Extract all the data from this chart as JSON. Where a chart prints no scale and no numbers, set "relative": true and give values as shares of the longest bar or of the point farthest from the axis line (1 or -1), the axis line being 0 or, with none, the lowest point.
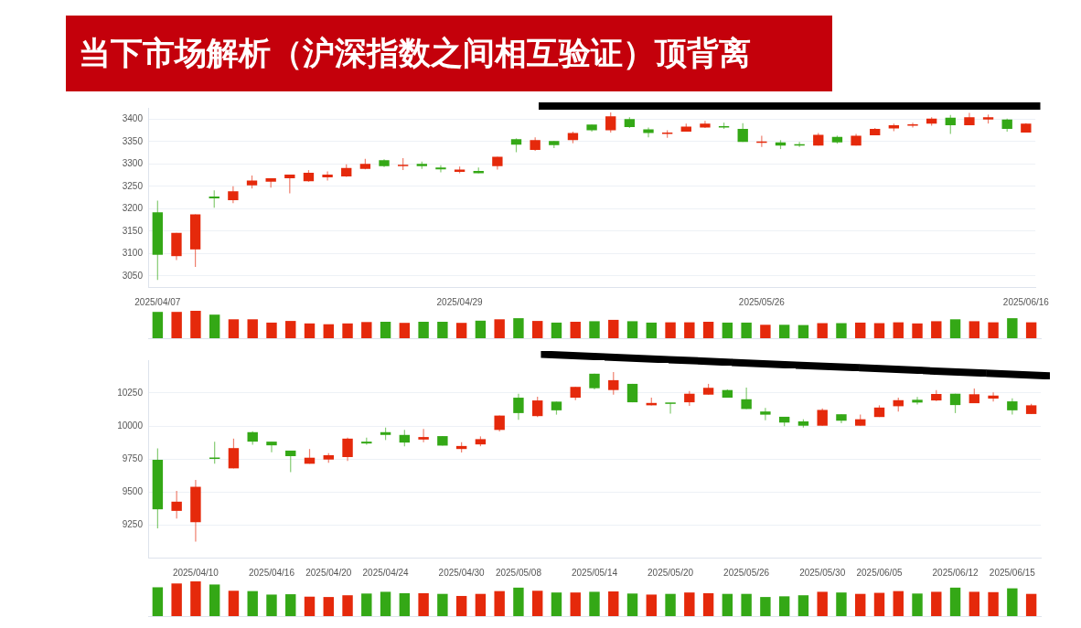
{
  "chart_data": [
    {
      "type": "candlestick",
      "title": "当下市场解析（沪深指数之间相互验证）顶背离",
      "grid": "y",
      "ylim": [
        3025,
        3425
      ],
      "yticks": [
        3050,
        3100,
        3150,
        3200,
        3250,
        3300,
        3350,
        3400
      ],
      "categories": [
        "2025/04/07",
        null,
        null,
        null,
        null,
        null,
        null,
        null,
        null,
        null,
        null,
        null,
        null,
        null,
        null,
        null,
        "2025/04/29",
        null,
        null,
        null,
        null,
        null,
        null,
        null,
        null,
        null,
        null,
        null,
        null,
        null,
        null,
        null,
        "2025/05/26",
        null,
        null,
        null,
        null,
        null,
        null,
        null,
        null,
        null,
        null,
        null,
        null,
        null,
        "2025/06/16"
      ],
      "ohlc": [
        [
          3192,
          3218,
          3041,
          3097
        ],
        [
          3094,
          3146,
          3085,
          3146
        ],
        [
          3109,
          3187,
          3070,
          3187
        ],
        [
          3227,
          3241,
          3202,
          3223
        ],
        [
          3219,
          3250,
          3212,
          3239
        ],
        [
          3252,
          3274,
          3245,
          3263
        ],
        [
          3260,
          3268,
          3247,
          3268
        ],
        [
          3268,
          3276,
          3234,
          3276
        ],
        [
          3261,
          3286,
          3260,
          3280
        ],
        [
          3270,
          3283,
          3263,
          3276
        ],
        [
          3272,
          3299,
          3271,
          3291
        ],
        [
          3289,
          3311,
          3288,
          3300
        ],
        [
          3308,
          3310,
          3293,
          3295
        ],
        [
          3295,
          3313,
          3286,
          3297
        ],
        [
          3300,
          3305,
          3289,
          3295
        ],
        [
          3292,
          3297,
          3281,
          3288
        ],
        [
          3282,
          3294,
          3279,
          3287
        ],
        [
          3284,
          3292,
          3279,
          3279
        ],
        [
          3295,
          3316,
          3287,
          3316
        ],
        [
          3355,
          3357,
          3326,
          3343
        ],
        [
          3331,
          3359,
          3329,
          3353
        ],
        [
          3351,
          3351,
          3335,
          3342
        ],
        [
          3353,
          3372,
          3346,
          3369
        ],
        [
          3388,
          3388,
          3372,
          3375
        ],
        [
          3375,
          3415,
          3370,
          3406
        ],
        [
          3400,
          3404,
          3380,
          3382
        ],
        [
          3377,
          3381,
          3359,
          3369
        ],
        [
          3367,
          3375,
          3358,
          3370
        ],
        [
          3372,
          3390,
          3372,
          3383
        ],
        [
          3381,
          3396,
          3380,
          3390
        ],
        [
          3383,
          3392,
          3378,
          3381
        ],
        [
          3378,
          3391,
          3349,
          3349
        ],
        [
          3347,
          3363,
          3338,
          3349
        ],
        [
          3348,
          3353,
          3333,
          3341
        ],
        [
          3343,
          3349,
          3338,
          3341
        ],
        [
          3341,
          3369,
          3341,
          3365
        ],
        [
          3360,
          3363,
          3345,
          3348
        ],
        [
          3341,
          3367,
          3341,
          3363
        ],
        [
          3364,
          3380,
          3364,
          3378
        ],
        [
          3379,
          3390,
          3373,
          3386
        ],
        [
          3385,
          3392,
          3381,
          3386
        ],
        [
          3390,
          3404,
          3385,
          3401
        ],
        [
          3403,
          3409,
          3367,
          3386
        ],
        [
          3386,
          3414,
          3386,
          3404
        ],
        [
          3399,
          3410,
          3390,
          3404
        ],
        [
          3399,
          3401,
          3372,
          3378
        ],
        [
          3370,
          3391,
          3370,
          3390
        ]
      ],
      "colors": [
        "#34a816",
        "#e5290b",
        "#e5290b",
        "#34a816",
        "#e5290b",
        "#e5290b",
        "#e5290b",
        "#e5290b",
        "#e5290b",
        "#e5290b",
        "#e5290b",
        "#e5290b",
        "#34a816",
        "#e5290b",
        "#34a816",
        "#34a816",
        "#e5290b",
        "#34a816",
        "#e5290b",
        "#34a816",
        "#e5290b",
        "#34a816",
        "#e5290b",
        "#34a816",
        "#e5290b",
        "#34a816",
        "#34a816",
        "#e5290b",
        "#e5290b",
        "#e5290b",
        "#34a816",
        "#34a816",
        "#e5290b",
        "#34a816",
        "#34a816",
        "#e5290b",
        "#34a816",
        "#e5290b",
        "#e5290b",
        "#e5290b",
        "#e5290b",
        "#e5290b",
        "#34a816",
        "#e5290b",
        "#e5290b",
        "#34a816",
        "#e5290b"
      ]
    },
    {
      "type": "bar",
      "relative": true,
      "categories": [
        null,
        null,
        null,
        null,
        null,
        null,
        null,
        null,
        null,
        null,
        null,
        null,
        null,
        null,
        null,
        null,
        null,
        null,
        null,
        null,
        null,
        null,
        null,
        null,
        null,
        null,
        null,
        null,
        null,
        null,
        null,
        null,
        null,
        null,
        null,
        null,
        null,
        null,
        null,
        null,
        null,
        null,
        null,
        null,
        null,
        null,
        null
      ],
      "values": [
        0.96,
        0.96,
        1,
        0.86,
        0.69,
        0.69,
        0.57,
        0.63,
        0.54,
        0.51,
        0.54,
        0.59,
        0.6,
        0.56,
        0.6,
        0.6,
        0.56,
        0.64,
        0.69,
        0.73,
        0.63,
        0.57,
        0.6,
        0.62,
        0.67,
        0.62,
        0.57,
        0.58,
        0.58,
        0.6,
        0.57,
        0.57,
        0.49,
        0.49,
        0.48,
        0.55,
        0.55,
        0.57,
        0.55,
        0.58,
        0.54,
        0.62,
        0.69,
        0.62,
        0.58,
        0.73,
        0.58
      ],
      "colors": [
        "#34a816",
        "#e5290b",
        "#e5290b",
        "#34a816",
        "#e5290b",
        "#e5290b",
        "#e5290b",
        "#e5290b",
        "#e5290b",
        "#e5290b",
        "#e5290b",
        "#e5290b",
        "#34a816",
        "#e5290b",
        "#34a816",
        "#34a816",
        "#e5290b",
        "#34a816",
        "#e5290b",
        "#34a816",
        "#e5290b",
        "#34a816",
        "#e5290b",
        "#34a816",
        "#e5290b",
        "#34a816",
        "#34a816",
        "#e5290b",
        "#e5290b",
        "#e5290b",
        "#34a816",
        "#34a816",
        "#e5290b",
        "#34a816",
        "#34a816",
        "#e5290b",
        "#34a816",
        "#e5290b",
        "#e5290b",
        "#e5290b",
        "#e5290b",
        "#e5290b",
        "#34a816",
        "#e5290b",
        "#e5290b",
        "#34a816",
        "#e5290b"
      ]
    },
    {
      "type": "candlestick",
      "grid": "y",
      "ylim": [
        9000,
        10500
      ],
      "yticks": [
        9250,
        9500,
        9750,
        10000,
        10250
      ],
      "categories": [
        null,
        null,
        "2025/04/10",
        null,
        null,
        null,
        "2025/04/16",
        null,
        null,
        "2025/04/20",
        null,
        null,
        "2025/04/24",
        null,
        null,
        null,
        "2025/04/30",
        null,
        null,
        "2025/05/08",
        null,
        null,
        null,
        "2025/05/14",
        null,
        null,
        null,
        "2025/05/20",
        null,
        null,
        null,
        "2025/05/26",
        null,
        null,
        null,
        "2025/05/30",
        null,
        null,
        "2025/06/05",
        null,
        null,
        null,
        "2025/06/12",
        null,
        null,
        "2025/06/15",
        null
      ],
      "ohlc": [
        [
          9743,
          9830,
          9222,
          9367
        ],
        [
          9355,
          9507,
          9297,
          9425
        ],
        [
          9269,
          9591,
          9122,
          9538
        ],
        [
          9757,
          9881,
          9713,
          9750
        ],
        [
          9678,
          9904,
          9678,
          9832
        ],
        [
          9953,
          9960,
          9858,
          9881
        ],
        [
          9881,
          9881,
          9801,
          9853
        ],
        [
          9813,
          9813,
          9650,
          9771
        ],
        [
          9713,
          9825,
          9713,
          9759
        ],
        [
          9745,
          9794,
          9720,
          9778
        ],
        [
          9764,
          9911,
          9734,
          9904
        ],
        [
          9881,
          9911,
          9858,
          9867
        ],
        [
          9953,
          9988,
          9893,
          9932
        ],
        [
          9932,
          9970,
          9846,
          9874
        ],
        [
          9897,
          9977,
          9876,
          9916
        ],
        [
          9923,
          9923,
          9851,
          9851
        ],
        [
          9825,
          9876,
          9799,
          9848
        ],
        [
          9860,
          9921,
          9846,
          9900
        ],
        [
          9970,
          10079,
          9958,
          10079
        ],
        [
          10215,
          10245,
          10047,
          10098
        ],
        [
          10075,
          10222,
          10068,
          10194
        ],
        [
          10185,
          10185,
          10086,
          10119
        ],
        [
          10215,
          10297,
          10196,
          10297
        ],
        [
          10397,
          10397,
          10278,
          10287
        ],
        [
          10273,
          10409,
          10238,
          10348
        ],
        [
          10320,
          10320,
          10180,
          10180
        ],
        [
          10157,
          10215,
          10157,
          10175
        ],
        [
          10171,
          10175,
          10093,
          10168
        ],
        [
          10180,
          10266,
          10152,
          10245
        ],
        [
          10238,
          10320,
          10238,
          10290
        ],
        [
          10273,
          10278,
          10215,
          10215
        ],
        [
          10203,
          10292,
          10129,
          10129
        ],
        [
          10110,
          10138,
          10044,
          10086
        ],
        [
          10070,
          10070,
          9998,
          10026
        ],
        [
          10035,
          10051,
          9988,
          10002
        ],
        [
          10002,
          10133,
          10002,
          10122
        ],
        [
          10089,
          10089,
          10021,
          10040
        ],
        [
          10002,
          10086,
          10002,
          10051
        ],
        [
          10068,
          10157,
          10068,
          10140
        ],
        [
          10150,
          10215,
          10110,
          10196
        ],
        [
          10199,
          10220,
          10164,
          10178
        ],
        [
          10194,
          10273,
          10189,
          10243
        ],
        [
          10245,
          10245,
          10098,
          10159
        ],
        [
          10173,
          10285,
          10173,
          10241
        ],
        [
          10208,
          10255,
          10185,
          10231
        ],
        [
          10187,
          10210,
          10086,
          10119
        ],
        [
          10091,
          10168,
          10091,
          10157
        ]
      ],
      "colors": [
        "#34a816",
        "#e5290b",
        "#e5290b",
        "#34a816",
        "#e5290b",
        "#34a816",
        "#34a816",
        "#34a816",
        "#e5290b",
        "#e5290b",
        "#e5290b",
        "#34a816",
        "#34a816",
        "#34a816",
        "#e5290b",
        "#34a816",
        "#e5290b",
        "#e5290b",
        "#e5290b",
        "#34a816",
        "#e5290b",
        "#34a816",
        "#e5290b",
        "#34a816",
        "#e5290b",
        "#34a816",
        "#e5290b",
        "#34a816",
        "#e5290b",
        "#e5290b",
        "#34a816",
        "#34a816",
        "#34a816",
        "#34a816",
        "#34a816",
        "#e5290b",
        "#34a816",
        "#e5290b",
        "#e5290b",
        "#e5290b",
        "#34a816",
        "#e5290b",
        "#34a816",
        "#e5290b",
        "#e5290b",
        "#34a816",
        "#e5290b"
      ]
    },
    {
      "type": "bar",
      "relative": true,
      "categories": [
        null,
        null,
        null,
        null,
        null,
        null,
        null,
        null,
        null,
        null,
        null,
        null,
        null,
        null,
        null,
        null,
        null,
        null,
        null,
        null,
        null,
        null,
        null,
        null,
        null,
        null,
        null,
        null,
        null,
        null,
        null,
        null,
        null,
        null,
        null,
        null,
        null,
        null,
        null,
        null,
        null,
        null,
        null,
        null,
        null,
        null,
        null
      ],
      "values": [
        0.83,
        0.94,
        1,
        0.91,
        0.73,
        0.72,
        0.62,
        0.63,
        0.56,
        0.55,
        0.6,
        0.65,
        0.7,
        0.66,
        0.66,
        0.64,
        0.58,
        0.64,
        0.72,
        0.82,
        0.73,
        0.68,
        0.68,
        0.7,
        0.71,
        0.65,
        0.62,
        0.64,
        0.68,
        0.66,
        0.64,
        0.64,
        0.55,
        0.57,
        0.6,
        0.7,
        0.68,
        0.64,
        0.67,
        0.72,
        0.65,
        0.7,
        0.82,
        0.7,
        0.69,
        0.8,
        0.64
      ],
      "colors": [
        "#34a816",
        "#e5290b",
        "#e5290b",
        "#34a816",
        "#e5290b",
        "#34a816",
        "#34a816",
        "#34a816",
        "#e5290b",
        "#e5290b",
        "#e5290b",
        "#34a816",
        "#34a816",
        "#34a816",
        "#e5290b",
        "#34a816",
        "#e5290b",
        "#e5290b",
        "#e5290b",
        "#34a816",
        "#e5290b",
        "#34a816",
        "#e5290b",
        "#34a816",
        "#e5290b",
        "#34a816",
        "#e5290b",
        "#34a816",
        "#e5290b",
        "#e5290b",
        "#34a816",
        "#34a816",
        "#34a816",
        "#34a816",
        "#34a816",
        "#e5290b",
        "#34a816",
        "#e5290b",
        "#e5290b",
        "#e5290b",
        "#34a816",
        "#e5290b",
        "#34a816",
        "#e5290b",
        "#e5290b",
        "#34a816",
        "#e5290b"
      ]
    }
  ]
}
